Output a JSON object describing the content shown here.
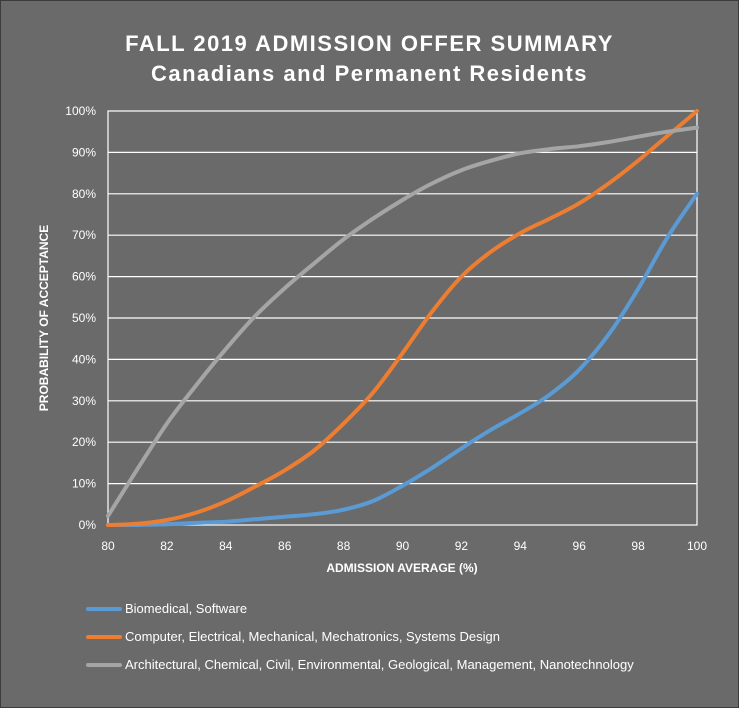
{
  "chart_data": {
    "type": "line",
    "title": "FALL 2019 ADMISSION OFFER SUMMARY",
    "subtitle": "Canadians and Permanent Residents",
    "xlabel": "ADMISSION AVERAGE (%)",
    "ylabel": "PROBABILITY OF ACCEPTANCE",
    "xlim": [
      80,
      100
    ],
    "ylim": [
      0,
      100
    ],
    "xticks": [
      80,
      82,
      84,
      86,
      88,
      90,
      92,
      94,
      96,
      98,
      100
    ],
    "yticks": [
      0,
      10,
      20,
      30,
      40,
      50,
      60,
      70,
      80,
      90,
      100
    ],
    "ytick_labels": [
      "0%",
      "10%",
      "20%",
      "30%",
      "40%",
      "50%",
      "60%",
      "70%",
      "80%",
      "90%",
      "100%"
    ],
    "grid": true,
    "legend_position": "bottom",
    "x": [
      80,
      81,
      82,
      83,
      84,
      85,
      86,
      87,
      88,
      89,
      90,
      91,
      92,
      93,
      94,
      95,
      96,
      97,
      98,
      99,
      100
    ],
    "series": [
      {
        "name": "Biomedical, Software",
        "color": "#5b9bd5",
        "values": [
          0,
          0,
          0.2,
          0.5,
          0.8,
          1.4,
          2,
          2.6,
          3.7,
          5.8,
          9.5,
          13.8,
          18.5,
          23,
          27,
          31.5,
          37.5,
          46,
          57,
          69.5,
          80
        ]
      },
      {
        "name": "Computer, Electrical, Mechanical, Mechatronics, Systems Design",
        "color": "#ed7d31",
        "values": [
          0,
          0.3,
          1.2,
          3,
          5.7,
          9.3,
          13.2,
          18,
          24.5,
          32,
          41.5,
          51.5,
          60,
          66,
          70.5,
          74,
          77.7,
          82.5,
          88,
          94,
          100
        ]
      },
      {
        "name": "Architectural, Chemical, Civil, Environmental, Geological, Management, Nanotechnology",
        "color": "#a5a5a5",
        "values": [
          2.2,
          13.5,
          24.5,
          33.8,
          42.5,
          50.5,
          57.2,
          63.2,
          69,
          74,
          78.5,
          82.5,
          85.7,
          88,
          89.8,
          90.8,
          91.5,
          92.5,
          93.8,
          95,
          96
        ]
      }
    ]
  }
}
